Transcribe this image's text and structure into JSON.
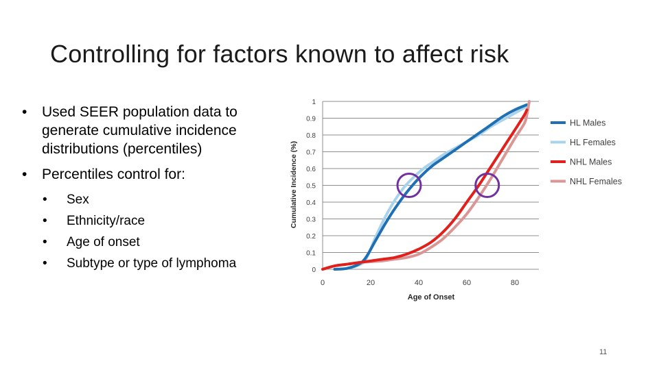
{
  "slide": {
    "title": "Controlling for factors known to affect risk",
    "page_number": "11"
  },
  "bullets": [
    {
      "text": "Used SEER population data to generate cumulative incidence distributions (percentiles)",
      "sub": []
    },
    {
      "text": "Percentiles control for:",
      "sub": [
        "Sex",
        "Ethnicity/race",
        "Age of onset",
        "Subtype or type of lymphoma"
      ]
    }
  ],
  "bullet_glyph": "•",
  "chart_data": {
    "type": "line",
    "title": "",
    "xlabel": "Age of Onset",
    "ylabel": "Cumulative Incidence (%)",
    "xlim": [
      0,
      90
    ],
    "ylim": [
      0,
      1
    ],
    "xticks": [
      0,
      20,
      40,
      60,
      80
    ],
    "yticks": [
      0,
      0.1,
      0.2,
      0.3,
      0.4,
      0.5,
      0.6,
      0.7,
      0.8,
      0.9,
      1
    ],
    "ytick_labels": [
      "0",
      "0.1",
      "0.2",
      "0.3",
      "0.4",
      "0.5",
      "0.6",
      "0.7",
      "0.8",
      "0.9",
      "1"
    ],
    "grid": "horizontal",
    "legend_position": "right",
    "series": [
      {
        "name": "HL Males",
        "color": "#1f6fb5",
        "x": [
          5,
          10,
          15,
          18,
          22,
          26,
          30,
          34,
          38,
          42,
          46,
          50,
          55,
          60,
          65,
          70,
          75,
          80,
          85
        ],
        "y": [
          0,
          0.005,
          0.03,
          0.07,
          0.17,
          0.27,
          0.36,
          0.44,
          0.51,
          0.57,
          0.62,
          0.66,
          0.71,
          0.76,
          0.81,
          0.86,
          0.91,
          0.95,
          0.98
        ]
      },
      {
        "name": "HL Females",
        "color": "#a9d3ea",
        "x": [
          5,
          10,
          15,
          18,
          22,
          26,
          30,
          34,
          38,
          42,
          46,
          50,
          55,
          60,
          65,
          70,
          75,
          80,
          85
        ],
        "y": [
          0,
          0.005,
          0.025,
          0.06,
          0.19,
          0.31,
          0.41,
          0.49,
          0.55,
          0.6,
          0.64,
          0.68,
          0.72,
          0.76,
          0.8,
          0.85,
          0.89,
          0.93,
          0.97
        ]
      },
      {
        "name": "NHL Males",
        "color": "#e0201b",
        "x": [
          0,
          5,
          10,
          15,
          20,
          25,
          30,
          35,
          40,
          45,
          50,
          55,
          60,
          65,
          70,
          75,
          80,
          84,
          85
        ],
        "y": [
          0,
          0.02,
          0.03,
          0.04,
          0.05,
          0.06,
          0.07,
          0.09,
          0.12,
          0.16,
          0.22,
          0.3,
          0.4,
          0.5,
          0.61,
          0.72,
          0.83,
          0.92,
          0.95
        ]
      },
      {
        "name": "NHL Females",
        "color": "#d99694",
        "x": [
          0,
          5,
          10,
          15,
          20,
          25,
          30,
          35,
          40,
          45,
          50,
          55,
          60,
          65,
          70,
          75,
          80,
          84,
          85,
          86
        ],
        "y": [
          0,
          0.02,
          0.03,
          0.04,
          0.045,
          0.05,
          0.06,
          0.07,
          0.09,
          0.13,
          0.18,
          0.25,
          0.33,
          0.43,
          0.54,
          0.66,
          0.78,
          0.87,
          0.92,
          1
        ]
      }
    ],
    "annotations": [
      {
        "type": "circle",
        "x": 36,
        "y": 0.5,
        "color": "#7030a0"
      },
      {
        "type": "circle",
        "x": 68.5,
        "y": 0.5,
        "color": "#7030a0"
      }
    ]
  }
}
